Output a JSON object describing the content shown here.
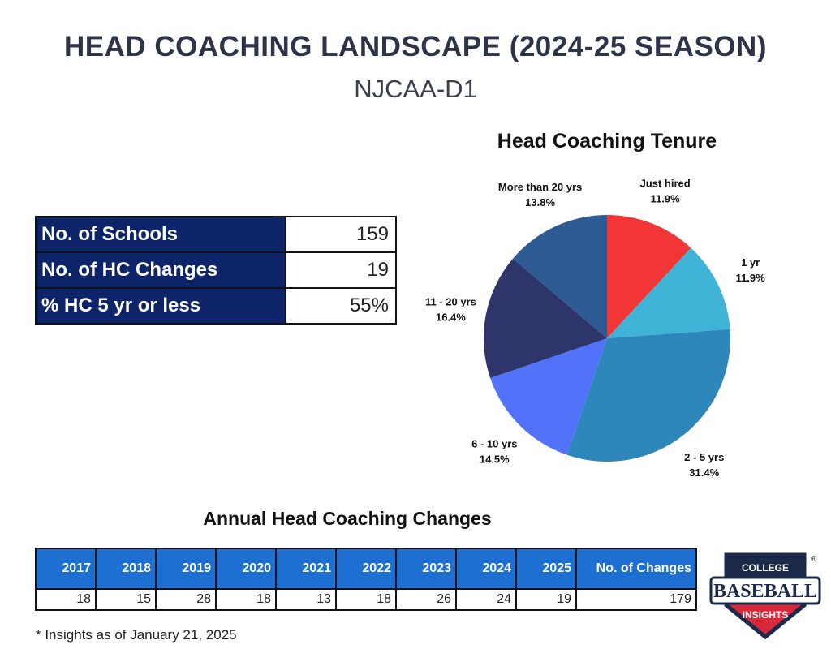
{
  "title": "HEAD COACHING LANDSCAPE (2024-25 SEASON)",
  "subtitle": "NJCAA-D1",
  "summary": {
    "rows": [
      {
        "label": "No. of Schools",
        "value": "159"
      },
      {
        "label": "No. of HC Changes",
        "value": "19"
      },
      {
        "label": "% HC 5 yr or less",
        "value": "55%"
      }
    ]
  },
  "chart_data": [
    {
      "type": "pie",
      "title": "Head Coaching Tenure",
      "slices": [
        {
          "label": "Just hired",
          "value": 11.9,
          "value_label": "11.9%",
          "color": "#f23535"
        },
        {
          "label": "1 yr",
          "value": 11.9,
          "value_label": "11.9%",
          "color": "#3fb4d6"
        },
        {
          "label": "2 - 5 yrs",
          "value": 31.4,
          "value_label": "31.4%",
          "color": "#2d87ba"
        },
        {
          "label": "6 - 10 yrs",
          "value": 14.5,
          "value_label": "14.5%",
          "color": "#5272fa"
        },
        {
          "label": "11 - 20 yrs",
          "value": 16.4,
          "value_label": "16.4%",
          "color": "#2e356a"
        },
        {
          "label": "More than 20 yrs",
          "value": 13.8,
          "value_label": "13.8%",
          "color": "#2f5b95"
        }
      ]
    },
    {
      "type": "table",
      "title": "Annual Head Coaching Changes",
      "columns": [
        "2017",
        "2018",
        "2019",
        "2020",
        "2021",
        "2022",
        "2023",
        "2024",
        "2025",
        "No. of Changes"
      ],
      "values": [
        "18",
        "15",
        "28",
        "18",
        "13",
        "18",
        "26",
        "24",
        "19",
        "179"
      ]
    }
  ],
  "footnote": "* Insights as of January 21, 2025",
  "logo": {
    "line1": "COLLEGE",
    "line2": "BASEBALL",
    "line3": "INSIGHTS",
    "mark": "®"
  },
  "colors": {
    "header_navy": "#0d2468",
    "header_blue": "#1e6fd2",
    "logo_red": "#d9283a",
    "logo_navy": "#1b2a4a"
  }
}
